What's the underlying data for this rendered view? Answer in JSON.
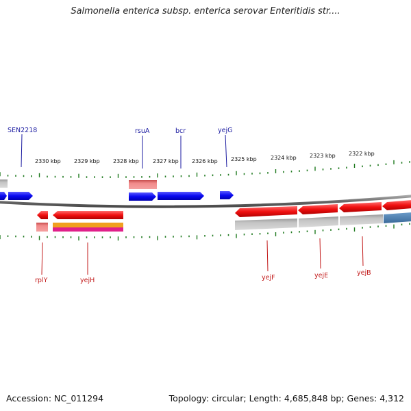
{
  "title": "Salmonella enterica subsp. enterica serovar Enteritidis str....",
  "footer": {
    "accession": "Accession: NC_011294",
    "summary": "Topology: circular; Length: 4,685,848 bp; Genes: 4,312"
  },
  "scale_labels": [
    "2330 kbp",
    "2329 kbp",
    "2328 kbp",
    "2327 kbp",
    "2326 kbp",
    "2325 kbp",
    "2324 kbp",
    "2323 kbp",
    "2322 kbp"
  ],
  "genes_top": [
    "SEN2218",
    "rsuA",
    "bcr",
    "yejG"
  ],
  "genes_bottom": [
    "rplY",
    "yejH",
    "yejF",
    "yejE",
    "yejB"
  ],
  "colors": {
    "forward_gene": "#1010ee",
    "reverse_gene": "#ee1111",
    "backbone": "#7a7a7a",
    "ticks": "#1f7a1f",
    "label_top": "#1a1aa0",
    "label_bottom": "#c21818",
    "feature_light": "#f08080",
    "feature_grey": "#b8b8b8",
    "feature_orange": "#f0a020",
    "feature_magenta": "#e0208a",
    "feature_steel": "#4a7fb0"
  }
}
